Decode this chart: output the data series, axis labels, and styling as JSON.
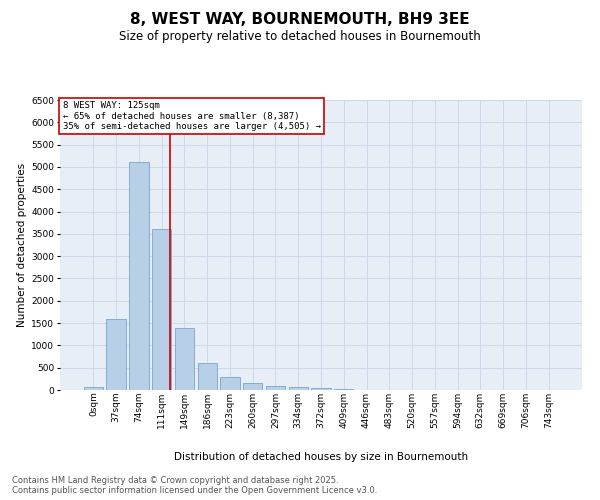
{
  "title": "8, WEST WAY, BOURNEMOUTH, BH9 3EE",
  "subtitle": "Size of property relative to detached houses in Bournemouth",
  "xlabel": "Distribution of detached houses by size in Bournemouth",
  "ylabel": "Number of detached properties",
  "categories": [
    "0sqm",
    "37sqm",
    "74sqm",
    "111sqm",
    "149sqm",
    "186sqm",
    "223sqm",
    "260sqm",
    "297sqm",
    "334sqm",
    "372sqm",
    "409sqm",
    "446sqm",
    "483sqm",
    "520sqm",
    "557sqm",
    "594sqm",
    "632sqm",
    "669sqm",
    "706sqm",
    "743sqm"
  ],
  "values": [
    75,
    1600,
    5100,
    3600,
    1400,
    600,
    300,
    150,
    100,
    75,
    50,
    20,
    10,
    5,
    3,
    2,
    1,
    1,
    0,
    0,
    0
  ],
  "bar_color": "#b8cfe8",
  "bar_edge_color": "#6699cc",
  "red_line_color": "#cc0000",
  "red_line_x": 3.37,
  "annotation_text": "8 WEST WAY: 125sqm\n← 65% of detached houses are smaller (8,387)\n35% of semi-detached houses are larger (4,505) →",
  "annotation_box_color": "#ffffff",
  "annotation_box_edge_color": "#cc0000",
  "ylim": [
    0,
    6500
  ],
  "yticks": [
    0,
    500,
    1000,
    1500,
    2000,
    2500,
    3000,
    3500,
    4000,
    4500,
    5000,
    5500,
    6000,
    6500
  ],
  "grid_color": "#c8d4e8",
  "background_color": "#e8eef6",
  "footer1": "Contains HM Land Registry data © Crown copyright and database right 2025.",
  "footer2": "Contains public sector information licensed under the Open Government Licence v3.0.",
  "title_fontsize": 11,
  "subtitle_fontsize": 8.5,
  "axis_label_fontsize": 7.5,
  "tick_fontsize": 6.5,
  "annotation_fontsize": 6.5,
  "footer_fontsize": 6.0
}
